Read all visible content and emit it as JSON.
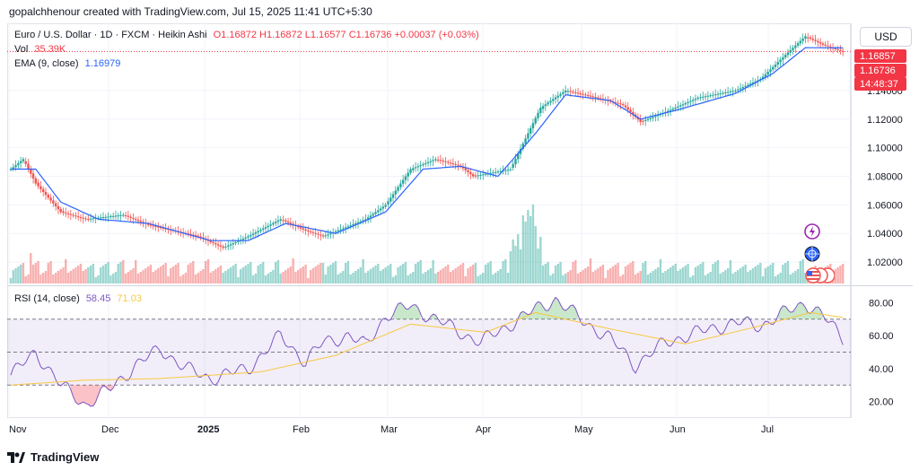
{
  "header": {
    "attribution": "gopalchhenour created with TradingView.com, Jul 15, 2025 11:41 UTC+5:30"
  },
  "legend": {
    "symbol": "Euro / U.S. Dollar · 1D · FXCM · Heikin Ashi",
    "ohlc": "O1.16872 H1.16872 L1.16577 C1.16736 +0.00037 (+0.03%)",
    "vol_label": "Vol",
    "vol_value": "35.39K",
    "ema_label": "EMA (9, close)",
    "ema_value": "1.16979",
    "rsi_label": "RSI (14, close)",
    "rsi_value": "58.45",
    "rsi_ma_value": "71.03"
  },
  "scale": {
    "currency": "USD",
    "tag_high": "1.16857",
    "tag_close": "1.16736",
    "tag_time": "14:48:37"
  },
  "footer": {
    "brand": "TradingView"
  },
  "colors": {
    "up": "#26a69a",
    "down": "#ef5350",
    "ema": "#2962ff",
    "rsi": "#7e57c2",
    "rsi_ma": "#f7c843"
  },
  "chart_data": [
    {
      "type": "candlestick",
      "title": "Euro / U.S. Dollar · 1D · FXCM · Heikin Ashi",
      "y_ticks": [
        "1.14000",
        "1.12000",
        "1.10000",
        "1.08000",
        "1.06000",
        "1.04000",
        "1.02000"
      ],
      "ylim": [
        1.005,
        1.182
      ],
      "x_ticks": [
        "Nov",
        "Dec",
        "2025",
        "Feb",
        "Mar",
        "Apr",
        "May",
        "Jun",
        "Jul"
      ],
      "close_path": [
        [
          0,
          1.085
        ],
        [
          5,
          1.092
        ],
        [
          10,
          1.075
        ],
        [
          20,
          1.055
        ],
        [
          30,
          1.05
        ],
        [
          45,
          1.053
        ],
        [
          55,
          1.046
        ],
        [
          75,
          1.038
        ],
        [
          85,
          1.03
        ],
        [
          95,
          1.038
        ],
        [
          108,
          1.05
        ],
        [
          118,
          1.042
        ],
        [
          125,
          1.038
        ],
        [
          135,
          1.045
        ],
        [
          142,
          1.05
        ],
        [
          150,
          1.06
        ],
        [
          160,
          1.085
        ],
        [
          170,
          1.092
        ],
        [
          180,
          1.087
        ],
        [
          185,
          1.08
        ],
        [
          200,
          1.085
        ],
        [
          212,
          1.128
        ],
        [
          222,
          1.14
        ],
        [
          232,
          1.136
        ],
        [
          245,
          1.13
        ],
        [
          252,
          1.118
        ],
        [
          262,
          1.125
        ],
        [
          275,
          1.135
        ],
        [
          290,
          1.14
        ],
        [
          300,
          1.148
        ],
        [
          310,
          1.165
        ],
        [
          318,
          1.178
        ],
        [
          325,
          1.172
        ],
        [
          333,
          1.167
        ]
      ],
      "ema_path": [
        [
          0,
          1.085
        ],
        [
          10,
          1.085
        ],
        [
          20,
          1.062
        ],
        [
          35,
          1.05
        ],
        [
          55,
          1.047
        ],
        [
          80,
          1.035
        ],
        [
          95,
          1.035
        ],
        [
          110,
          1.047
        ],
        [
          130,
          1.04
        ],
        [
          150,
          1.055
        ],
        [
          165,
          1.085
        ],
        [
          180,
          1.087
        ],
        [
          195,
          1.08
        ],
        [
          210,
          1.11
        ],
        [
          222,
          1.137
        ],
        [
          240,
          1.133
        ],
        [
          252,
          1.12
        ],
        [
          268,
          1.127
        ],
        [
          290,
          1.138
        ],
        [
          305,
          1.152
        ],
        [
          318,
          1.17
        ],
        [
          333,
          1.1698
        ]
      ],
      "volume_markers": [
        1.04,
        1.05
      ]
    },
    {
      "type": "line",
      "title": "RSI (14, close)",
      "y_ticks": [
        "80.00",
        "60.00",
        "40.00",
        "20.00"
      ],
      "ylim": [
        10,
        90
      ],
      "bands": [
        30,
        50,
        70
      ],
      "rsi_path": [
        [
          0,
          36
        ],
        [
          10,
          50
        ],
        [
          20,
          30
        ],
        [
          30,
          18
        ],
        [
          40,
          28
        ],
        [
          50,
          42
        ],
        [
          60,
          52
        ],
        [
          70,
          40
        ],
        [
          80,
          34
        ],
        [
          95,
          40
        ],
        [
          108,
          60
        ],
        [
          118,
          44
        ],
        [
          125,
          56
        ],
        [
          135,
          60
        ],
        [
          142,
          54
        ],
        [
          150,
          72
        ],
        [
          160,
          78
        ],
        [
          170,
          70
        ],
        [
          180,
          62
        ],
        [
          188,
          56
        ],
        [
          200,
          67
        ],
        [
          210,
          76
        ],
        [
          218,
          82
        ],
        [
          228,
          70
        ],
        [
          240,
          58
        ],
        [
          250,
          42
        ],
        [
          262,
          56
        ],
        [
          275,
          62
        ],
        [
          290,
          68
        ],
        [
          300,
          66
        ],
        [
          310,
          74
        ],
        [
          318,
          80
        ],
        [
          325,
          72
        ],
        [
          333,
          58.45
        ]
      ],
      "ma_path": [
        [
          0,
          30
        ],
        [
          30,
          33
        ],
        [
          60,
          34
        ],
        [
          100,
          38
        ],
        [
          130,
          48
        ],
        [
          160,
          67
        ],
        [
          190,
          62
        ],
        [
          210,
          74
        ],
        [
          240,
          64
        ],
        [
          270,
          55
        ],
        [
          300,
          66
        ],
        [
          320,
          74
        ],
        [
          333,
          71.03
        ]
      ]
    }
  ]
}
